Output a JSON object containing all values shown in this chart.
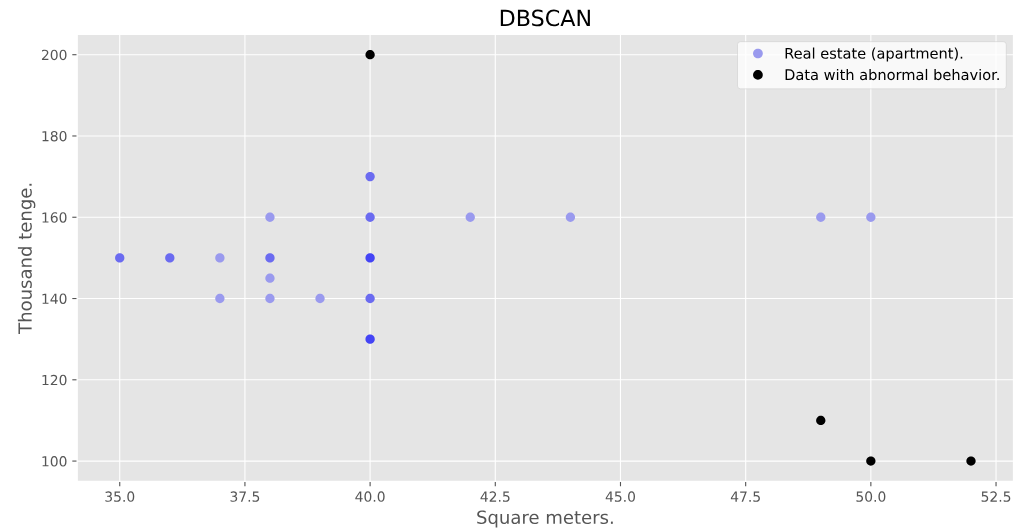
{
  "chart_data": {
    "type": "scatter",
    "title": "DBSCAN",
    "xlabel": "Square meters.",
    "ylabel": "Thousand tenge.",
    "xlim": [
      34.15,
      52.85
    ],
    "xticks": [
      {
        "value": 35,
        "label": "35.0"
      },
      {
        "value": 37.5,
        "label": "37.5"
      },
      {
        "value": 40,
        "label": "40.0"
      },
      {
        "value": 42.5,
        "label": "42.5"
      },
      {
        "value": 45,
        "label": "45.0"
      },
      {
        "value": 47.5,
        "label": "47.5"
      },
      {
        "value": 50,
        "label": "50.0"
      },
      {
        "value": 52.5,
        "label": "52.5"
      }
    ],
    "ylim": [
      95,
      205
    ],
    "yticks": [
      100,
      120,
      140,
      160,
      180,
      200
    ],
    "grid": true,
    "legend": "top right",
    "marker": "circle",
    "series": [
      {
        "name": "Real estate (apartment).",
        "color": "#9a9aee",
        "x": [
          35,
          36,
          37,
          37,
          38,
          38,
          38,
          38,
          39,
          40,
          40,
          40,
          40,
          40,
          42,
          44,
          49,
          50
        ],
        "values": [
          150,
          150,
          150,
          140,
          160,
          150,
          145,
          140,
          140,
          170,
          160,
          150,
          140,
          130,
          160,
          160,
          160,
          160
        ],
        "colors": [
          "#6b6bf0",
          "#6b6bf0",
          "#9a9aee",
          "#9a9aee",
          "#9a9aee",
          "#6b6bf0",
          "#9a9aee",
          "#9a9aee",
          "#9a9aee",
          "#6b6bf0",
          "#6b6bf0",
          "#4444f5",
          "#6b6bf0",
          "#4444f5",
          "#9a9aee",
          "#9a9aee",
          "#9a9aee",
          "#9a9aee"
        ]
      },
      {
        "name": "Data with abnormal behavior.",
        "color": "#000000",
        "x": [
          40,
          49,
          50,
          52
        ],
        "values": [
          200,
          110,
          100,
          100
        ]
      }
    ]
  }
}
